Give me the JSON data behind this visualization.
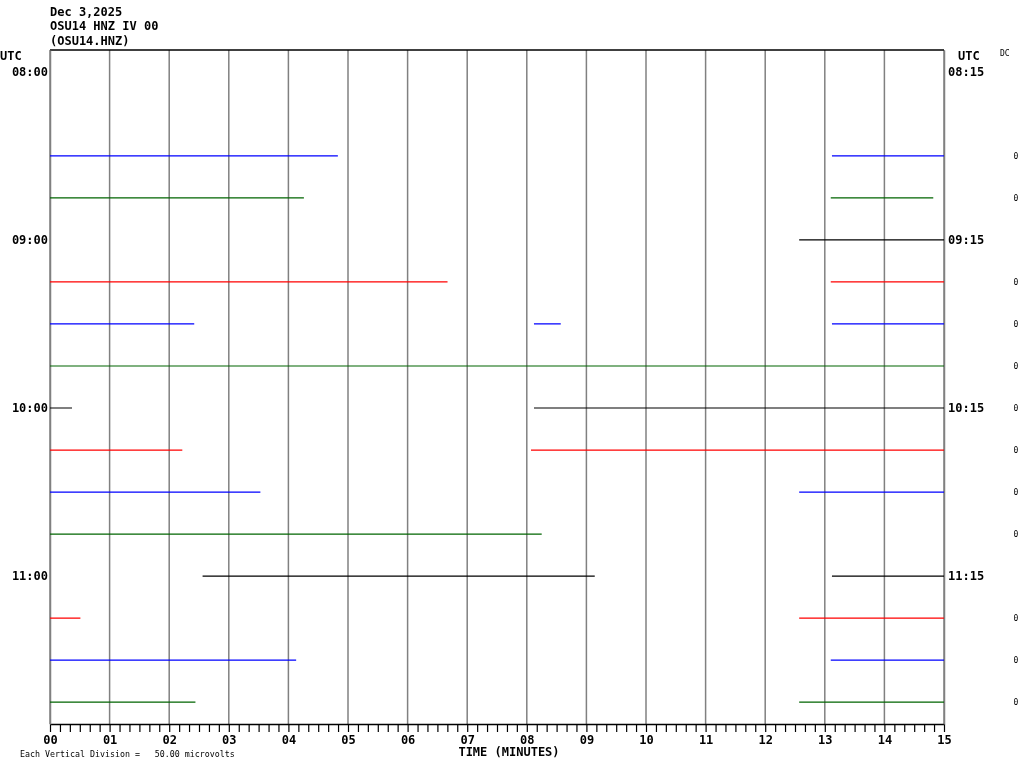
{
  "chart_data": {
    "type": "line",
    "title": "Dec 3,2025",
    "subtitle": "OSU14 HNZ IV 00",
    "xlabel": "TIME (MINUTES)",
    "ylabel": "UTC",
    "y2label": "UTC",
    "annotations": [
      "(OSU14.HNZ)",
      "DC",
      "Each Vertical Division =   50.00 microvolts",
      "0",
      "0",
      "0",
      "0",
      "0",
      "0",
      "0",
      "0",
      "0",
      "0",
      "0",
      "0"
    ],
    "xlim": [
      0,
      15
    ],
    "xticks": [
      {
        "value": 0,
        "label": "00"
      },
      {
        "value": 0.167,
        "label": null
      },
      {
        "value": 0.333,
        "label": null
      },
      {
        "value": 0.5,
        "label": null
      },
      {
        "value": 0.667,
        "label": null
      },
      {
        "value": 0.833,
        "label": null
      },
      {
        "value": 1,
        "label": "01"
      },
      {
        "value": 1.167,
        "label": null
      },
      {
        "value": 1.333,
        "label": null
      },
      {
        "value": 1.5,
        "label": null
      },
      {
        "value": 1.667,
        "label": null
      },
      {
        "value": 1.833,
        "label": null
      },
      {
        "value": 2,
        "label": "02"
      },
      {
        "value": 2.167,
        "label": null
      },
      {
        "value": 2.333,
        "label": null
      },
      {
        "value": 2.5,
        "label": null
      },
      {
        "value": 2.667,
        "label": null
      },
      {
        "value": 2.833,
        "label": null
      },
      {
        "value": 3,
        "label": "03"
      },
      {
        "value": 3.167,
        "label": null
      },
      {
        "value": 3.333,
        "label": null
      },
      {
        "value": 3.5,
        "label": null
      },
      {
        "value": 3.667,
        "label": null
      },
      {
        "value": 3.833,
        "label": null
      },
      {
        "value": 4,
        "label": "04"
      },
      {
        "value": 4.167,
        "label": null
      },
      {
        "value": 4.333,
        "label": null
      },
      {
        "value": 4.5,
        "label": null
      },
      {
        "value": 4.667,
        "label": null
      },
      {
        "value": 4.833,
        "label": null
      },
      {
        "value": 5,
        "label": "05"
      },
      {
        "value": 5.167,
        "label": null
      },
      {
        "value": 5.333,
        "label": null
      },
      {
        "value": 5.5,
        "label": null
      },
      {
        "value": 5.667,
        "label": null
      },
      {
        "value": 5.833,
        "label": null
      },
      {
        "value": 6,
        "label": "06"
      },
      {
        "value": 6.167,
        "label": null
      },
      {
        "value": 6.333,
        "label": null
      },
      {
        "value": 6.5,
        "label": null
      },
      {
        "value": 6.667,
        "label": null
      },
      {
        "value": 6.833,
        "label": null
      },
      {
        "value": 7,
        "label": "07"
      },
      {
        "value": 7.167,
        "label": null
      },
      {
        "value": 7.333,
        "label": null
      },
      {
        "value": 7.5,
        "label": null
      },
      {
        "value": 7.667,
        "label": null
      },
      {
        "value": 7.833,
        "label": null
      },
      {
        "value": 8,
        "label": "08"
      },
      {
        "value": 8.167,
        "label": null
      },
      {
        "value": 8.333,
        "label": null
      },
      {
        "value": 8.5,
        "label": null
      },
      {
        "value": 8.667,
        "label": null
      },
      {
        "value": 8.833,
        "label": null
      },
      {
        "value": 9,
        "label": "09"
      },
      {
        "value": 9.167,
        "label": null
      },
      {
        "value": 9.333,
        "label": null
      },
      {
        "value": 9.5,
        "label": null
      },
      {
        "value": 9.667,
        "label": null
      },
      {
        "value": 9.833,
        "label": null
      },
      {
        "value": 10,
        "label": "10"
      },
      {
        "value": 10.167,
        "label": null
      },
      {
        "value": 10.333,
        "label": null
      },
      {
        "value": 10.5,
        "label": null
      },
      {
        "value": 10.667,
        "label": null
      },
      {
        "value": 10.833,
        "label": null
      },
      {
        "value": 11,
        "label": "11"
      },
      {
        "value": 11.167,
        "label": null
      },
      {
        "value": 11.333,
        "label": null
      },
      {
        "value": 11.5,
        "label": null
      },
      {
        "value": 11.667,
        "label": null
      },
      {
        "value": 11.833,
        "label": null
      },
      {
        "value": 12,
        "label": "12"
      },
      {
        "value": 12.167,
        "label": null
      },
      {
        "value": 12.333,
        "label": null
      },
      {
        "value": 12.5,
        "label": null
      },
      {
        "value": 12.667,
        "label": null
      },
      {
        "value": 12.833,
        "label": null
      },
      {
        "value": 13,
        "label": "13"
      },
      {
        "value": 13.167,
        "label": null
      },
      {
        "value": 13.333,
        "label": null
      },
      {
        "value": 13.5,
        "label": null
      },
      {
        "value": 13.667,
        "label": null
      },
      {
        "value": 13.833,
        "label": null
      },
      {
        "value": 14,
        "label": "14"
      },
      {
        "value": 14.167,
        "label": null
      },
      {
        "value": 14.333,
        "label": null
      },
      {
        "value": 14.5,
        "label": null
      },
      {
        "value": 14.667,
        "label": null
      },
      {
        "value": 14.833,
        "label": null
      },
      {
        "value": 15,
        "label": "15"
      }
    ],
    "ylim": [
      11.88,
      7.87
    ],
    "yticks": [
      {
        "value": 8,
        "label": "08:00"
      },
      {
        "value": 9,
        "label": "09:00"
      },
      {
        "value": 10,
        "label": "10:00"
      },
      {
        "value": 11,
        "label": "11:00"
      }
    ],
    "y2lim": [
      12.13,
      8.12
    ],
    "y2ticks": [
      {
        "value": 8.25,
        "label": "08:15"
      },
      {
        "value": 9.25,
        "label": "09:15"
      },
      {
        "value": 10.25,
        "label": "10:15"
      },
      {
        "value": 11.25,
        "label": "11:15"
      }
    ],
    "grid": "x",
    "series": [
      {
        "color": "#0000ff",
        "x": [
          0,
          4.83,
          9,
          13.12,
          15
        ],
        "values": [
          8.5,
          8.5,
          null,
          8.5,
          8.5
        ]
      },
      {
        "color": "#006400",
        "x": [
          0,
          4.26,
          9,
          13.1,
          14.82
        ],
        "values": [
          8.75,
          8.75,
          null,
          8.75,
          8.75
        ]
      },
      {
        "color": "#000000",
        "x": [
          12.57,
          15
        ],
        "values": [
          9,
          9
        ]
      },
      {
        "color": "#ff0000",
        "x": [
          0,
          6.67,
          10,
          13.1,
          15
        ],
        "values": [
          9.25,
          9.25,
          null,
          9.25,
          9.25
        ]
      },
      {
        "color": "#0000ff",
        "x": [
          0,
          2.42,
          5,
          8.12,
          8.57,
          11,
          13.12,
          15
        ],
        "values": [
          9.5,
          9.5,
          null,
          9.5,
          9.5,
          null,
          9.5,
          9.5
        ]
      },
      {
        "color": "#006400",
        "x": [
          0,
          15
        ],
        "values": [
          9.75,
          9.75
        ]
      },
      {
        "color": "#000000",
        "x": [
          0,
          0.37,
          4,
          8.12,
          15
        ],
        "values": [
          10,
          10,
          null,
          10,
          10
        ]
      },
      {
        "color": "#ff0000",
        "x": [
          0,
          2.22,
          5,
          8.07,
          15
        ],
        "values": [
          10.25,
          10.25,
          null,
          10.25,
          10.25
        ]
      },
      {
        "color": "#0000ff",
        "x": [
          0,
          3.53,
          8,
          12.57,
          15
        ],
        "values": [
          10.5,
          10.5,
          null,
          10.5,
          10.5
        ]
      },
      {
        "color": "#006400",
        "x": [
          0,
          8.25
        ],
        "values": [
          10.75,
          10.75
        ]
      },
      {
        "color": "#000000",
        "x": [
          2.56,
          9.14,
          11,
          13.12,
          15
        ],
        "values": [
          11,
          11,
          null,
          11,
          11
        ]
      },
      {
        "color": "#ff0000",
        "x": [
          0,
          0.51,
          6,
          12.57,
          15
        ],
        "values": [
          11.25,
          11.25,
          null,
          11.25,
          11.25
        ]
      },
      {
        "color": "#0000ff",
        "x": [
          0,
          4.13,
          9,
          13.1,
          15
        ],
        "values": [
          11.5,
          11.5,
          null,
          11.5,
          11.5
        ]
      },
      {
        "color": "#006400",
        "x": [
          0,
          2.44,
          7,
          12.57,
          15
        ],
        "values": [
          11.75,
          11.75,
          null,
          11.75,
          11.75
        ]
      }
    ]
  }
}
